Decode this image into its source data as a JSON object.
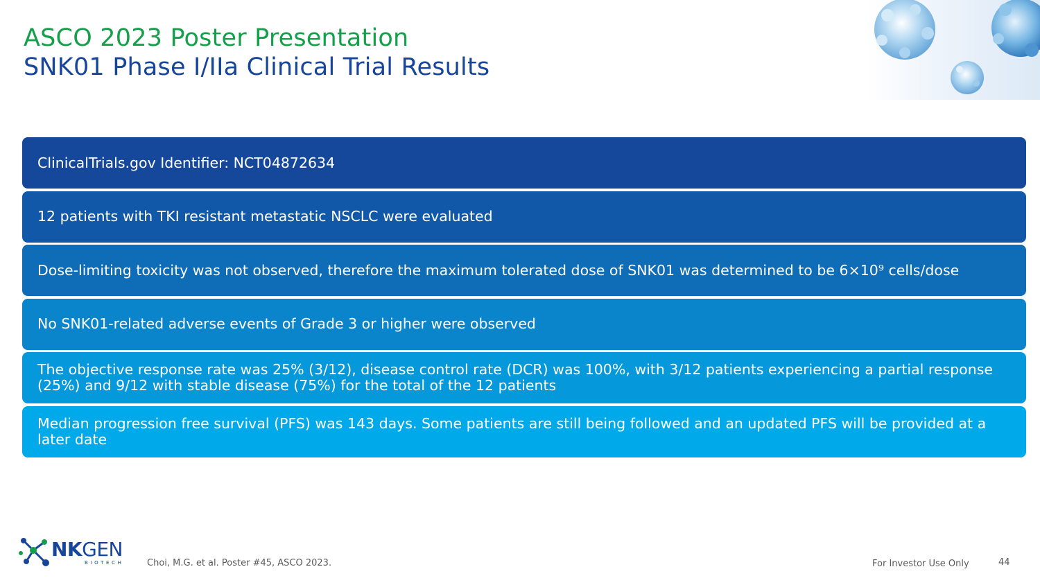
{
  "title": {
    "line1": "ASCO 2023 Poster Presentation",
    "line2": "SNK01 Phase I/IIa Clinical Trial Results"
  },
  "bullets": [
    {
      "text": "ClinicalTrials.gov Identifier: NCT04872634",
      "color": "#15489a"
    },
    {
      "text": "12 patients with TKI resistant metastatic NSCLC were evaluated",
      "color": "#1258a8"
    },
    {
      "text": "Dose-limiting toxicity was not observed, therefore the maximum tolerated dose of SNK01 was determined to be 6×10⁹ cells/dose",
      "color": "#0f6db8"
    },
    {
      "text": "No SNK01-related adverse events of Grade 3 or higher were observed",
      "color": "#0a84cb"
    },
    {
      "text": "The objective response rate was 25% (3/12), disease control rate (DCR) was 100%, with 3/12 patients experiencing a partial response (25%) and 9/12 with stable disease (75%) for the total of the 12 patients",
      "color": "#0598db"
    },
    {
      "text": "Median progression free survival (PFS) was 143 days. Some patients are still being followed and an updated PFS will be provided at a later date",
      "color": "#00aaea"
    }
  ],
  "logo": {
    "name_bold": "NK",
    "name_light": "GEN",
    "subtitle": "BIOTECH"
  },
  "footer": {
    "citation": "Choi, M.G. et al. Poster #45, ASCO 2023.",
    "disclaimer": "For Investor Use Only",
    "page_number": "44"
  }
}
